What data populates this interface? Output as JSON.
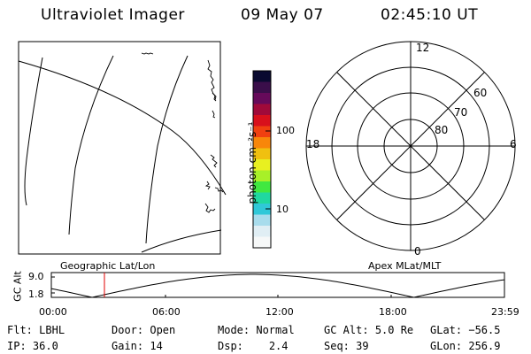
{
  "header": {
    "instrument": "Ultraviolet Imager",
    "date": "09 May 07",
    "time": "02:45:10 UT"
  },
  "colorbar": {
    "unit_label": "photon cm⁻²s⁻¹",
    "tick_labels": [
      "100",
      "10"
    ],
    "colors": [
      "#0a0a30",
      "#3a0e4a",
      "#660a5a",
      "#a00a3a",
      "#d8101c",
      "#f04010",
      "#f8860a",
      "#f0c010",
      "#e8f020",
      "#a8f028",
      "#40e840",
      "#20d8a0",
      "#30c8d8",
      "#a8dcec",
      "#e0eef4",
      "#f6f8f8"
    ]
  },
  "polar_plot": {
    "mlt_labels": {
      "top": "12",
      "right": "6",
      "bottom": "0",
      "left": "18"
    },
    "lat_labels": [
      "60",
      "70",
      "80"
    ]
  },
  "timeline": {
    "left_label": "Geographic Lat/Lon",
    "right_label": "Apex MLat/MLT",
    "y_axis_title": "GC Alt",
    "y_ticks": [
      "9.0",
      "1.8"
    ],
    "x_ticks": [
      "00:00",
      "06:00",
      "12:00",
      "18:00",
      "23:59"
    ],
    "marker_color": "#e00000",
    "curve_color": "#000000"
  },
  "status": {
    "row1": [
      {
        "label": "Flt:",
        "value": "LBHL"
      },
      {
        "label": "Door:",
        "value": "Open"
      },
      {
        "label": "Mode:",
        "value": "Normal"
      },
      {
        "label": "GC Alt:",
        "value": "5.0 Re"
      },
      {
        "label": "GLat:",
        "value": "−56.5"
      }
    ],
    "row2": [
      {
        "label": "IP:",
        "value": "36.0"
      },
      {
        "label": "Gain:",
        "value": "14"
      },
      {
        "label": "Dsp:",
        "value": "2.4"
      },
      {
        "label": "Seq:",
        "value": "39"
      },
      {
        "label": "GLon:",
        "value": "256.9"
      }
    ]
  }
}
